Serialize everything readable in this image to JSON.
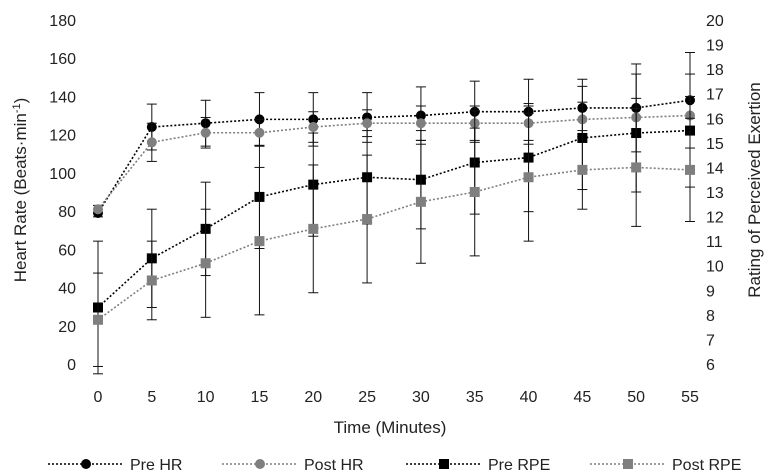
{
  "chart_data": {
    "type": "line",
    "xlabel": "Time (Minutes)",
    "ylabel_left_main": "Heart Rate (Beats·min",
    "ylabel_left_sup": "-1",
    "ylabel_left_close": ")",
    "ylabel_right": "Rating of Perceived Exertion",
    "x": [
      0,
      5,
      10,
      15,
      20,
      25,
      30,
      35,
      40,
      45,
      50,
      55
    ],
    "x_ticks": [
      "0",
      "5",
      "10",
      "15",
      "20",
      "25",
      "30",
      "35",
      "40",
      "45",
      "50",
      "55"
    ],
    "ylim_left": [
      0,
      180
    ],
    "y_ticks_left": [
      "0",
      "20",
      "40",
      "60",
      "80",
      "100",
      "120",
      "140",
      "160",
      "180"
    ],
    "ylim_right": [
      6,
      20
    ],
    "y_ticks_right": [
      "6",
      "7",
      "8",
      "9",
      "10",
      "11",
      "12",
      "13",
      "14",
      "15",
      "16",
      "17",
      "18",
      "19",
      "20"
    ],
    "grid": false,
    "legend_position": "bottom",
    "series": [
      {
        "name": "Pre HR",
        "axis": "left",
        "color": "#000000",
        "marker": "circle",
        "values": [
          79,
          124,
          126,
          128,
          128,
          129,
          130,
          132,
          132,
          134,
          134,
          138
        ],
        "errors": [
          2,
          12,
          12,
          14,
          14,
          13,
          15,
          16,
          17,
          15,
          23,
          25
        ]
      },
      {
        "name": "Post HR",
        "axis": "left",
        "color": "#7f7f7f",
        "marker": "circle",
        "values": [
          81,
          116,
          121,
          121,
          124,
          126,
          126,
          126,
          126,
          128,
          129,
          130
        ],
        "errors": [
          2,
          10,
          8,
          7,
          8,
          7,
          9,
          9,
          9,
          9,
          10,
          10
        ]
      },
      {
        "name": "Pre RPE",
        "axis": "right",
        "color": "#000000",
        "marker": "square",
        "values": [
          8.3,
          10.3,
          11.5,
          12.8,
          13.3,
          13.6,
          13.5,
          14.2,
          14.4,
          15.2,
          15.4,
          15.5
        ],
        "errors": [
          2.7,
          2.0,
          1.9,
          2.1,
          2.1,
          1.9,
          2.0,
          2.1,
          2.2,
          2.1,
          2.4,
          2.3
        ]
      },
      {
        "name": "Post RPE",
        "axis": "right",
        "color": "#7f7f7f",
        "marker": "square",
        "values": [
          7.8,
          9.4,
          10.1,
          11.0,
          11.5,
          11.9,
          12.6,
          13.0,
          13.6,
          13.9,
          14.0,
          13.9
        ],
        "errors": [
          1.9,
          1.6,
          2.2,
          3.0,
          2.6,
          2.6,
          2.5,
          2.6,
          2.6,
          1.6,
          2.4,
          2.1
        ]
      }
    ]
  }
}
